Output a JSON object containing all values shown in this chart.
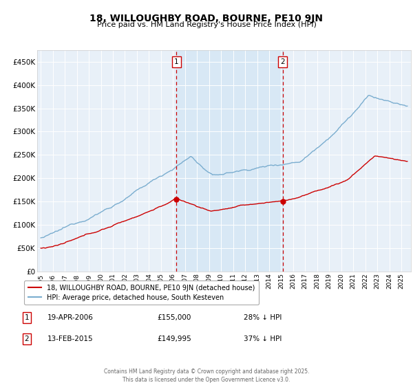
{
  "title": "18, WILLOUGHBY ROAD, BOURNE, PE10 9JN",
  "subtitle": "Price paid vs. HM Land Registry's House Price Index (HPI)",
  "legend_line1": "18, WILLOUGHBY ROAD, BOURNE, PE10 9JN (detached house)",
  "legend_line2": "HPI: Average price, detached house, South Kesteven",
  "annotation1_date": "19-APR-2006",
  "annotation1_price": "£155,000",
  "annotation1_hpi": "28% ↓ HPI",
  "annotation2_date": "13-FEB-2015",
  "annotation2_price": "£149,995",
  "annotation2_hpi": "37% ↓ HPI",
  "vline1_x": 2006.29,
  "vline2_x": 2015.12,
  "marker1_x": 2006.29,
  "marker1_y": 155000,
  "marker2_x": 2015.12,
  "marker2_y": 149995,
  "red_color": "#cc0000",
  "blue_color": "#7aadcf",
  "fill_color": "#d8e8f5",
  "background_color": "#e8f0f8",
  "ylim": [
    0,
    475000
  ],
  "xlim": [
    1994.7,
    2025.8
  ],
  "footer": "Contains HM Land Registry data © Crown copyright and database right 2025.\nThis data is licensed under the Open Government Licence v3.0.",
  "yticks": [
    0,
    50000,
    100000,
    150000,
    200000,
    250000,
    300000,
    350000,
    400000,
    450000
  ],
  "ytick_labels": [
    "£0",
    "£50K",
    "£100K",
    "£150K",
    "£200K",
    "£250K",
    "£300K",
    "£350K",
    "£400K",
    "£450K"
  ],
  "xticks": [
    1995,
    1996,
    1997,
    1998,
    1999,
    2000,
    2001,
    2002,
    2003,
    2004,
    2005,
    2006,
    2007,
    2008,
    2009,
    2010,
    2011,
    2012,
    2013,
    2014,
    2015,
    2016,
    2017,
    2018,
    2019,
    2020,
    2021,
    2022,
    2023,
    2024,
    2025
  ]
}
